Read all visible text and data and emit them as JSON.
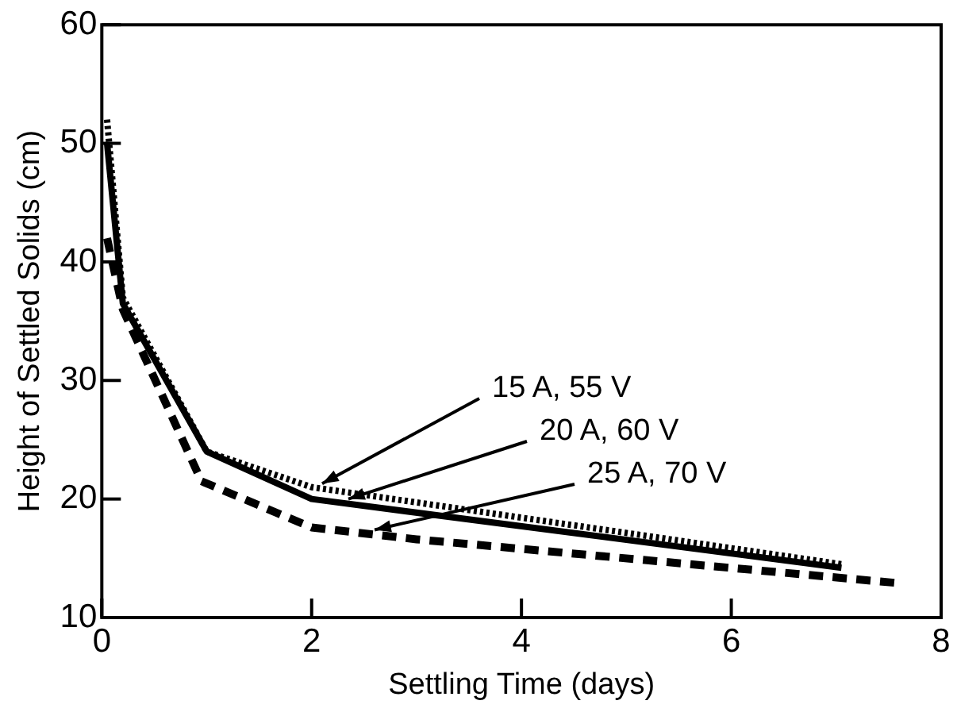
{
  "chart_data": {
    "type": "line",
    "xlabel": "Settling Time (days)",
    "ylabel": "Height of Settled Solids (cm)",
    "xlim": [
      0,
      8
    ],
    "xticks": [
      0,
      2,
      4,
      6,
      8
    ],
    "ylim": [
      10,
      60
    ],
    "yticks": [
      10,
      20,
      30,
      40,
      50,
      60
    ],
    "grid": false,
    "legend": false,
    "marker": "none",
    "annotations": [
      {
        "text": "15 A, 55 V",
        "x": 2.1,
        "y": 20.9
      },
      {
        "text": "20 A, 60 V",
        "x": 2.35,
        "y": 19.6
      },
      {
        "text": "25 A, 70 V",
        "x": 2.6,
        "y": 17
      }
    ],
    "series": [
      {
        "color": "#000000",
        "line_style": "dotted",
        "x": [
          0.05,
          0.2,
          1,
          2,
          7.05
        ],
        "values": [
          52,
          37,
          24,
          21,
          14.5
        ]
      },
      {
        "color": "#000000",
        "line_style": "solid",
        "x": [
          0.05,
          0.2,
          1,
          2,
          7.05
        ],
        "values": [
          50,
          36.5,
          24,
          20,
          14.2
        ]
      },
      {
        "color": "#000000",
        "line_style": "dashed",
        "x": [
          0.05,
          0.2,
          0.95,
          2,
          3,
          7.6
        ],
        "values": [
          42,
          36,
          21.5,
          17.6,
          16.6,
          12.9
        ]
      }
    ]
  }
}
